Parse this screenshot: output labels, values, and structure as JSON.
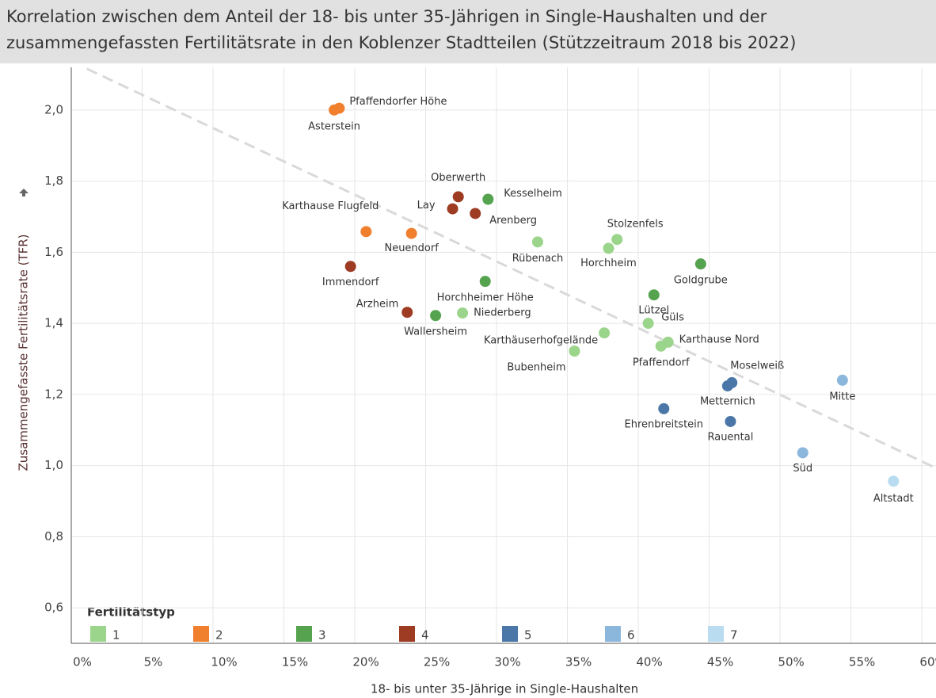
{
  "chart_data": {
    "type": "scatter",
    "title": [
      "Korrelation zwischen dem Anteil der 18- bis unter 35-Jährigen in Single-Haushalten und der",
      "zusammengefassten Fertilitätsrate in den Koblenzer Stadtteilen (Stützzeitraum 2018 bis 2022)"
    ],
    "x_label": "18- bis unter 35-Jährige in Single-Haushalten",
    "y_label": "Zusammengefasste Fertilitätsrate (TFR)",
    "legend_title": "Fertilitätstyp",
    "xlim": [
      0,
      61
    ],
    "ylim": [
      0.5,
      2.12
    ],
    "xticks": [
      {
        "value": 0,
        "label": "0%"
      },
      {
        "value": 5,
        "label": "5%"
      },
      {
        "value": 10,
        "label": "10%"
      },
      {
        "value": 15,
        "label": "15%"
      },
      {
        "value": 20,
        "label": "20%"
      },
      {
        "value": 25,
        "label": "25%"
      },
      {
        "value": 30,
        "label": "30%"
      },
      {
        "value": 35,
        "label": "35%"
      },
      {
        "value": 40,
        "label": "40%"
      },
      {
        "value": 45,
        "label": "45%"
      },
      {
        "value": 50,
        "label": "50%"
      },
      {
        "value": 55,
        "label": "55%"
      },
      {
        "value": 60,
        "label": "60%"
      }
    ],
    "yticks": [
      {
        "value": 0.6,
        "label": "0,6"
      },
      {
        "value": 0.8,
        "label": "0,8"
      },
      {
        "value": 1.0,
        "label": "1,0"
      },
      {
        "value": 1.2,
        "label": "1,2"
      },
      {
        "value": 1.4,
        "label": "1,4"
      },
      {
        "value": 1.6,
        "label": "1,6"
      },
      {
        "value": 1.8,
        "label": "1,8"
      },
      {
        "value": 2.0,
        "label": "2,0"
      }
    ],
    "grid": true,
    "trendline": {
      "x": [
        1.1,
        61
      ],
      "y": [
        2.116,
        0.993
      ],
      "color": "#d9d9d9"
    },
    "series": [
      {
        "name": "1",
        "color": "#9bd48b",
        "labels": [
          "Rübenach",
          "Stolzenfels",
          "Horchheim",
          "Niederberg",
          "Güls",
          "Karthäuserhofgelände",
          "Karthause Nord",
          "Pfaffendorf",
          "Bubenheim"
        ],
        "x": [
          32.9,
          38.5,
          37.9,
          27.6,
          40.7,
          37.6,
          42.1,
          41.6,
          35.5
        ],
        "y": [
          1.629,
          1.636,
          1.611,
          1.429,
          1.4,
          1.373,
          1.347,
          1.336,
          1.322
        ]
      },
      {
        "name": "2",
        "color": "#f07f2e",
        "labels": [
          "Pfaffendorfer Höhe",
          "Asterstein",
          "Karthause Flugfeld",
          "Neuendorf"
        ],
        "x": [
          18.9,
          18.55,
          20.8,
          24.0
        ],
        "y": [
          2.005,
          2.0,
          1.658,
          1.653
        ]
      },
      {
        "name": "3",
        "color": "#55a34f",
        "labels": [
          "Kesselheim",
          "Goldgrube",
          "Horchheimer Höhe",
          "Lützel",
          "Wallersheim"
        ],
        "x": [
          29.4,
          44.4,
          29.2,
          41.1,
          25.7
        ],
        "y": [
          1.749,
          1.567,
          1.518,
          1.48,
          1.422
        ]
      },
      {
        "name": "4",
        "color": "#9e3b23",
        "labels": [
          "Oberwerth",
          "Lay",
          "Arenberg",
          "Immendorf",
          "Arzheim"
        ],
        "x": [
          27.3,
          26.9,
          28.5,
          19.7,
          23.7
        ],
        "y": [
          1.756,
          1.722,
          1.709,
          1.56,
          1.431
        ]
      },
      {
        "name": "5",
        "color": "#4a77a8",
        "labels": [
          "Moselweiß",
          "Metternich",
          "Ehrenbreitstein",
          "Rauental"
        ],
        "x": [
          46.6,
          46.3,
          41.8,
          46.5
        ],
        "y": [
          1.233,
          1.224,
          1.16,
          1.124
        ]
      },
      {
        "name": "6",
        "color": "#8bb7dd",
        "labels": [
          "Mitte",
          "Süd"
        ],
        "x": [
          54.4,
          51.6
        ],
        "y": [
          1.24,
          1.036
        ]
      },
      {
        "name": "7",
        "color": "#b9dcf1",
        "labels": [
          "Altstadt"
        ],
        "x": [
          58.0
        ],
        "y": [
          0.956
        ]
      }
    ]
  }
}
